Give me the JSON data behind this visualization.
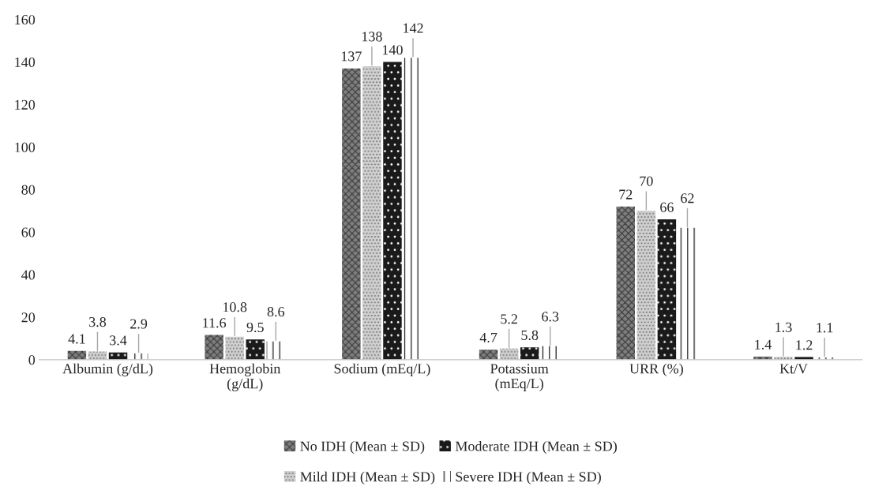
{
  "chart_data": {
    "type": "bar",
    "categories": [
      "Albumin (g/dL)",
      "Hemoglobin\n(g/dL)",
      "Sodium (mEq/L)",
      "Potassium\n(mEq/L)",
      "URR (%)",
      "Kt/V"
    ],
    "series": [
      {
        "name": "No IDH (Mean ± SD)",
        "color": "#7f7f7f",
        "values": [
          4.1,
          11.6,
          137,
          4.7,
          72,
          1.4
        ]
      },
      {
        "name": "Mild IDH (Mean ± SD)",
        "color": "#d0d0d0",
        "values": [
          3.8,
          10.8,
          138,
          5.2,
          70,
          1.3
        ]
      },
      {
        "name": "Moderate IDH (Mean ± SD)",
        "color": "#1a1a1a",
        "values": [
          3.4,
          9.5,
          140,
          5.8,
          66,
          1.2
        ]
      },
      {
        "name": "Severe IDH (Mean ± SD)",
        "color": "#ffffff",
        "values": [
          2.9,
          8.6,
          142,
          6.3,
          62,
          1.1
        ]
      }
    ],
    "ylim": [
      0,
      160
    ],
    "yticks": [
      0,
      20,
      40,
      60,
      80,
      100,
      120,
      140,
      160
    ],
    "data_labels": true,
    "grid": false,
    "legend": "bottom"
  }
}
